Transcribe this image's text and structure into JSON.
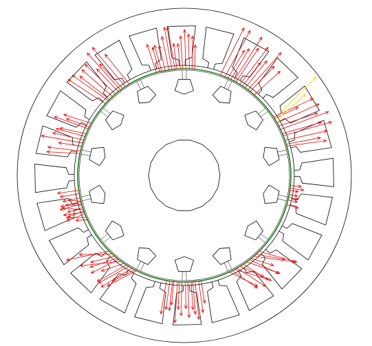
{
  "figure": {
    "stator_slot_count": 24,
    "rotor_slot_count": 14,
    "colors": {
      "outline": "#000000",
      "air_gap": "#1a7a1a",
      "force_vector": "#e00000",
      "highlight_vector": "#ffcc00",
      "background": "#ffffff"
    }
  }
}
